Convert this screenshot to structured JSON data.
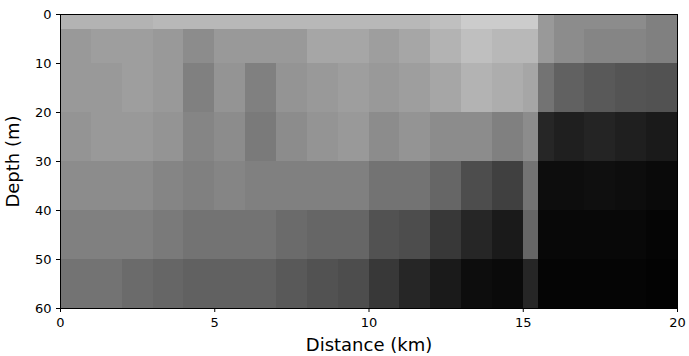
{
  "chart_data": {
    "type": "heatmap",
    "x_label": "Distance (km)",
    "y_label": "Depth (m)",
    "xlim": [
      0,
      20
    ],
    "ylim": [
      0,
      60
    ],
    "xticks": [
      0,
      5,
      10,
      15,
      20
    ],
    "yticks": [
      0,
      10,
      20,
      30,
      40,
      50,
      60
    ],
    "x_edges": [
      0,
      1,
      2,
      3,
      4,
      5,
      6,
      7,
      8,
      9,
      10,
      11,
      12,
      13,
      14,
      15,
      15.5,
      16,
      17,
      18,
      19,
      20
    ],
    "y_edges": [
      0,
      3,
      10,
      20,
      30,
      40,
      50,
      60
    ],
    "zlim": [
      0,
      1
    ],
    "values": [
      [
        0.7,
        0.6,
        0.6,
        0.58,
        0.55,
        0.5,
        0.45
      ],
      [
        0.7,
        0.62,
        0.6,
        0.6,
        0.55,
        0.5,
        0.45
      ],
      [
        0.7,
        0.62,
        0.62,
        0.6,
        0.55,
        0.5,
        0.42
      ],
      [
        0.72,
        0.6,
        0.6,
        0.58,
        0.52,
        0.48,
        0.4
      ],
      [
        0.72,
        0.55,
        0.5,
        0.52,
        0.5,
        0.45,
        0.38
      ],
      [
        0.72,
        0.6,
        0.58,
        0.55,
        0.52,
        0.45,
        0.38
      ],
      [
        0.72,
        0.6,
        0.5,
        0.48,
        0.5,
        0.45,
        0.38
      ],
      [
        0.72,
        0.6,
        0.58,
        0.55,
        0.5,
        0.42,
        0.35
      ],
      [
        0.72,
        0.65,
        0.6,
        0.58,
        0.5,
        0.4,
        0.32
      ],
      [
        0.72,
        0.65,
        0.62,
        0.6,
        0.5,
        0.4,
        0.3
      ],
      [
        0.72,
        0.62,
        0.6,
        0.55,
        0.45,
        0.32,
        0.22
      ],
      [
        0.72,
        0.65,
        0.62,
        0.58,
        0.45,
        0.3,
        0.15
      ],
      [
        0.75,
        0.7,
        0.65,
        0.55,
        0.4,
        0.22,
        0.1
      ],
      [
        0.8,
        0.75,
        0.7,
        0.55,
        0.3,
        0.15,
        0.05
      ],
      [
        0.8,
        0.72,
        0.68,
        0.5,
        0.25,
        0.1,
        0.04
      ],
      [
        0.8,
        0.72,
        0.65,
        0.55,
        0.45,
        0.4,
        0.15
      ],
      [
        0.6,
        0.6,
        0.45,
        0.15,
        0.05,
        0.03,
        0.02
      ],
      [
        0.55,
        0.55,
        0.38,
        0.12,
        0.05,
        0.03,
        0.02
      ],
      [
        0.55,
        0.52,
        0.35,
        0.14,
        0.06,
        0.03,
        0.02
      ],
      [
        0.55,
        0.52,
        0.33,
        0.12,
        0.05,
        0.03,
        0.02
      ],
      [
        0.5,
        0.5,
        0.32,
        0.1,
        0.04,
        0.02,
        0.01
      ]
    ]
  }
}
